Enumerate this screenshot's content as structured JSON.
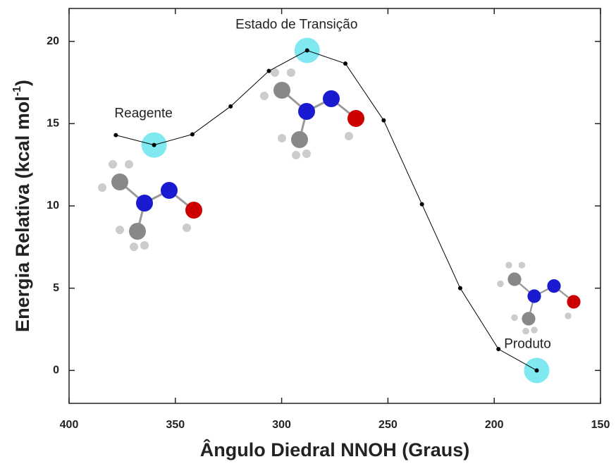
{
  "chart_data": {
    "type": "line",
    "x_label": "Ângulo Diedral NNOH (Graus)",
    "y_label": "Energia Relativa (kcal mol",
    "y_label_superscript": "-1",
    "y_label_close": ")",
    "x": [
      378,
      360,
      342,
      324,
      306,
      288,
      270,
      252,
      234,
      216,
      198,
      180
    ],
    "series": [
      {
        "color": "#000000",
        "values": [
          14.3,
          13.7,
          14.35,
          16.05,
          18.2,
          19.45,
          18.65,
          15.2,
          10.1,
          5.0,
          1.3,
          0
        ]
      }
    ],
    "xlim": [
      400,
      150
    ],
    "xticks": [
      400,
      350,
      300,
      250,
      200,
      150
    ],
    "ylim": [
      -2,
      22
    ],
    "yticks": [
      0,
      5,
      10,
      15,
      20
    ],
    "highlight_color": "#7fe8f0",
    "annotations": [
      {
        "text": "Reagente",
        "x": 360
      },
      {
        "text": "Estado de Transição",
        "x": 288
      },
      {
        "text": "Produto",
        "x": 180
      }
    ]
  }
}
